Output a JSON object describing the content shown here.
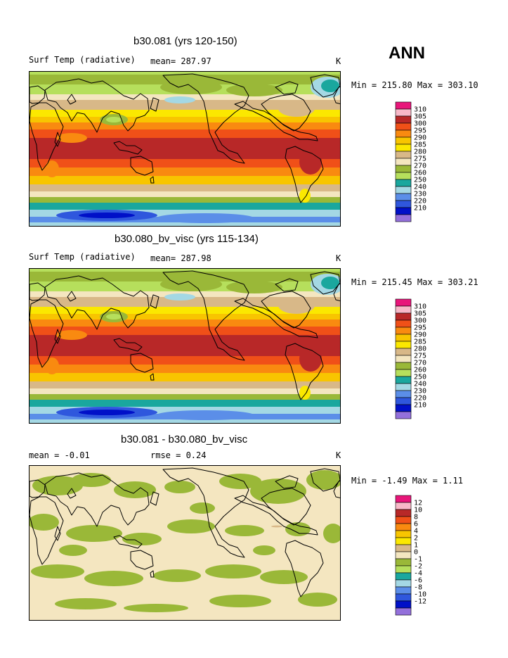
{
  "season": "ANN",
  "chart_data": [
    {
      "type": "heatmap",
      "title": "b30.081 (yrs 120-150)",
      "variable_label": "Surf Temp (radiative)",
      "mean_label": "mean= 287.97",
      "units": "K",
      "minmax_label": "Min = 215.80 Max = 303.10",
      "min": 215.8,
      "max": 303.1,
      "mean": 287.97,
      "contour_levels": [
        "310",
        "305",
        "300",
        "295",
        "290",
        "285",
        "280",
        "275",
        "270",
        "260",
        "250",
        "240",
        "230",
        "220",
        "210"
      ],
      "colors": [
        "#e8167a",
        "#f8b8c8",
        "#b82828",
        "#f05018",
        "#f98a10",
        "#f8c500",
        "#fbe800",
        "#d8b888",
        "#f4e6c0",
        "#9ab838",
        "#b6df5c",
        "#1aa79e",
        "#a4d8e4",
        "#5b8ee8",
        "#2f57dd",
        "#0010c8",
        "#9370db"
      ]
    },
    {
      "type": "heatmap",
      "title": "b30.080_bv_visc (yrs 115-134)",
      "variable_label": "Surf Temp (radiative)",
      "mean_label": "mean= 287.98",
      "units": "K",
      "minmax_label": "Min = 215.45 Max = 303.21",
      "min": 215.45,
      "max": 303.21,
      "mean": 287.98,
      "contour_levels": [
        "310",
        "305",
        "300",
        "295",
        "290",
        "285",
        "280",
        "275",
        "270",
        "260",
        "250",
        "240",
        "230",
        "220",
        "210"
      ],
      "colors": [
        "#e8167a",
        "#f8b8c8",
        "#b82828",
        "#f05018",
        "#f98a10",
        "#f8c500",
        "#fbe800",
        "#d8b888",
        "#f4e6c0",
        "#9ab838",
        "#b6df5c",
        "#1aa79e",
        "#a4d8e4",
        "#5b8ee8",
        "#2f57dd",
        "#0010c8",
        "#9370db"
      ]
    },
    {
      "type": "heatmap",
      "title": "b30.081 - b30.080_bv_visc",
      "mean_label": "mean =   -0.01",
      "rmse_label": "rmse =    0.24",
      "units": "K",
      "minmax_label": "Min =  -1.49 Max =   1.11",
      "min": -1.49,
      "max": 1.11,
      "mean": -0.01,
      "rmse": 0.24,
      "contour_levels": [
        "12",
        "10",
        "8",
        "6",
        "4",
        "2",
        "1",
        "0",
        "-1",
        "-2",
        "-4",
        "-6",
        "-8",
        "-10",
        "-12"
      ],
      "colors": [
        "#e8167a",
        "#f8b8c8",
        "#b82828",
        "#f05018",
        "#f98a10",
        "#f8c500",
        "#fbe800",
        "#d8b888",
        "#f4e6c0",
        "#9ab838",
        "#b6df5c",
        "#1aa79e",
        "#a4d8e4",
        "#5b8ee8",
        "#2f57dd",
        "#0010c8",
        "#9370db"
      ]
    }
  ]
}
